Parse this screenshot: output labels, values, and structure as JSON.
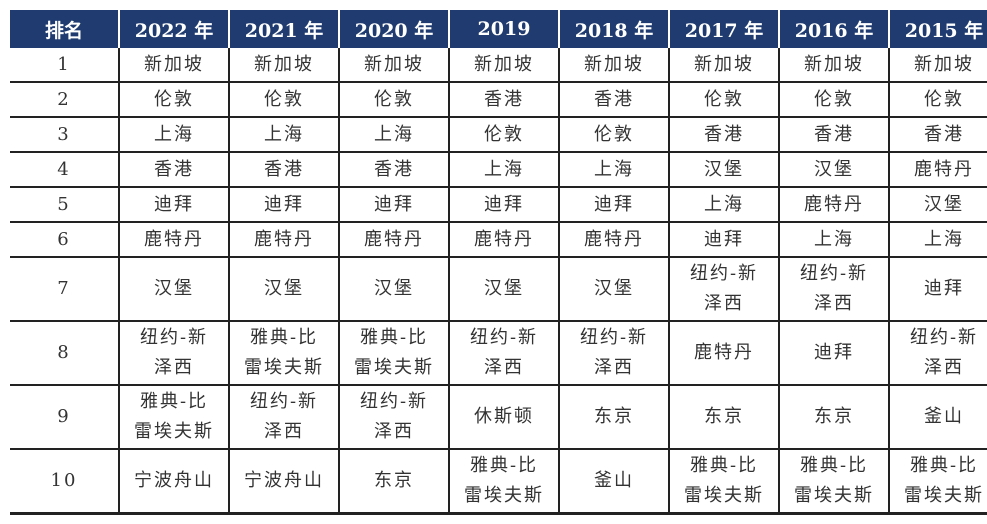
{
  "table": {
    "header_color": "#1f3b6f",
    "headers": [
      "排名",
      "2022 年",
      "2021 年",
      "2020 年",
      "2019",
      "2018 年",
      "2017 年",
      "2016 年",
      "2015 年"
    ],
    "rows": [
      {
        "rank": "1",
        "cells": [
          [
            "新加坡"
          ],
          [
            "新加坡"
          ],
          [
            "新加坡"
          ],
          [
            "新加坡"
          ],
          [
            "新加坡"
          ],
          [
            "新加坡"
          ],
          [
            "新加坡"
          ],
          [
            "新加坡"
          ]
        ]
      },
      {
        "rank": "2",
        "cells": [
          [
            "伦敦"
          ],
          [
            "伦敦"
          ],
          [
            "伦敦"
          ],
          [
            "香港"
          ],
          [
            "香港"
          ],
          [
            "伦敦"
          ],
          [
            "伦敦"
          ],
          [
            "伦敦"
          ]
        ]
      },
      {
        "rank": "3",
        "cells": [
          [
            "上海"
          ],
          [
            "上海"
          ],
          [
            "上海"
          ],
          [
            "伦敦"
          ],
          [
            "伦敦"
          ],
          [
            "香港"
          ],
          [
            "香港"
          ],
          [
            "香港"
          ]
        ]
      },
      {
        "rank": "4",
        "cells": [
          [
            "香港"
          ],
          [
            "香港"
          ],
          [
            "香港"
          ],
          [
            "上海"
          ],
          [
            "上海"
          ],
          [
            "汉堡"
          ],
          [
            "汉堡"
          ],
          [
            "鹿特丹"
          ]
        ]
      },
      {
        "rank": "5",
        "cells": [
          [
            "迪拜"
          ],
          [
            "迪拜"
          ],
          [
            "迪拜"
          ],
          [
            "迪拜"
          ],
          [
            "迪拜"
          ],
          [
            "上海"
          ],
          [
            "鹿特丹"
          ],
          [
            "汉堡"
          ]
        ]
      },
      {
        "rank": "6",
        "cells": [
          [
            "鹿特丹"
          ],
          [
            "鹿特丹"
          ],
          [
            "鹿特丹"
          ],
          [
            "鹿特丹"
          ],
          [
            "鹿特丹"
          ],
          [
            "迪拜"
          ],
          [
            "上海"
          ],
          [
            "上海"
          ]
        ]
      },
      {
        "rank": "7",
        "cells": [
          [
            "汉堡"
          ],
          [
            "汉堡"
          ],
          [
            "汉堡"
          ],
          [
            "汉堡"
          ],
          [
            "汉堡"
          ],
          [
            "纽约-新",
            "泽西"
          ],
          [
            "纽约-新",
            "泽西"
          ],
          [
            "迪拜"
          ]
        ]
      },
      {
        "rank": "8",
        "cells": [
          [
            "纽约-新",
            "泽西"
          ],
          [
            "雅典-比",
            "雷埃夫斯"
          ],
          [
            "雅典-比",
            "雷埃夫斯"
          ],
          [
            "纽约-新",
            "泽西"
          ],
          [
            "纽约-新",
            "泽西"
          ],
          [
            "鹿特丹"
          ],
          [
            "迪拜"
          ],
          [
            "纽约-新",
            "泽西"
          ]
        ]
      },
      {
        "rank": "9",
        "cells": [
          [
            "雅典-比",
            "雷埃夫斯"
          ],
          [
            "纽约-新",
            "泽西"
          ],
          [
            "纽约-新",
            "泽西"
          ],
          [
            "休斯顿"
          ],
          [
            "东京"
          ],
          [
            "东京"
          ],
          [
            "东京"
          ],
          [
            "釜山"
          ]
        ]
      },
      {
        "rank": "10",
        "cells": [
          [
            "宁波舟山"
          ],
          [
            "宁波舟山"
          ],
          [
            "东京"
          ],
          [
            "雅典-比",
            "雷埃夫斯"
          ],
          [
            "釜山"
          ],
          [
            "雅典-比",
            "雷埃夫斯"
          ],
          [
            "雅典-比",
            "雷埃夫斯"
          ],
          [
            "雅典-比",
            "雷埃夫斯"
          ]
        ]
      }
    ]
  }
}
